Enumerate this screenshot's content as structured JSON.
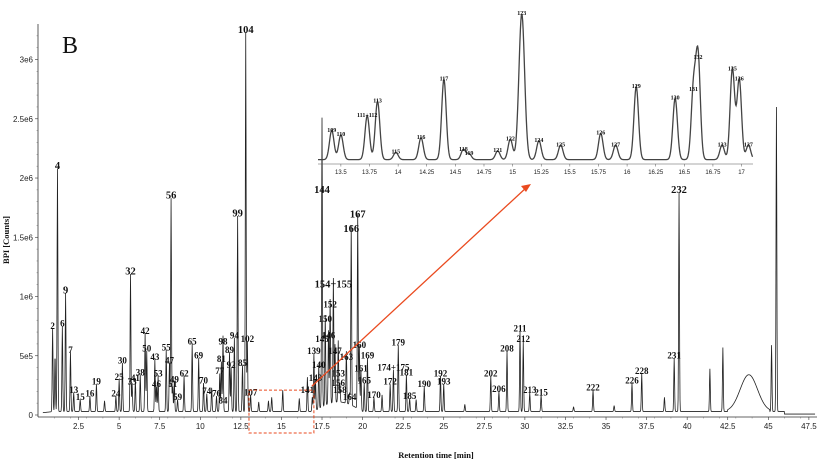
{
  "chart_data": {
    "type": "line",
    "panel_label": "B",
    "xlabel": "Retention time [min]",
    "ylabel": "BPI [Counts]",
    "xlim": [
      0,
      48
    ],
    "ylim": [
      0,
      3300000
    ],
    "x_ticks": [
      "2.5",
      "5",
      "7.5",
      "10",
      "12.5",
      "15",
      "17.5",
      "20",
      "22.5",
      "25",
      "27.5",
      "30",
      "32.5",
      "35",
      "37.5",
      "40",
      "42.5",
      "45",
      "47.5"
    ],
    "y_ticks": [
      "0",
      "5e5",
      "1e6",
      "1.5e6",
      "2e6",
      "2.5e6",
      "3e6"
    ],
    "peaks": [
      {
        "label": "2",
        "x": 0.9,
        "y": 700000
      },
      {
        "label": "4",
        "x": 1.2,
        "y": 2050000
      },
      {
        "label": "6",
        "x": 1.5,
        "y": 720000
      },
      {
        "label": "7",
        "x": 2.0,
        "y": 500000
      },
      {
        "label": "9",
        "x": 1.7,
        "y": 1000000
      },
      {
        "label": "13",
        "x": 2.2,
        "y": 160000
      },
      {
        "label": "15",
        "x": 2.6,
        "y": 100000
      },
      {
        "label": "16",
        "x": 3.2,
        "y": 130000
      },
      {
        "label": "19",
        "x": 3.6,
        "y": 230000
      },
      {
        "label": "24",
        "x": 4.8,
        "y": 130000
      },
      {
        "label": "25",
        "x": 5.0,
        "y": 270000
      },
      {
        "label": "30",
        "x": 5.2,
        "y": 410000
      },
      {
        "label": "32",
        "x": 5.7,
        "y": 1160000
      },
      {
        "label": "33",
        "x": 5.8,
        "y": 230000
      },
      {
        "label": "38",
        "x": 6.3,
        "y": 310000
      },
      {
        "label": "41",
        "x": 6.0,
        "y": 260000
      },
      {
        "label": "42",
        "x": 6.6,
        "y": 660000
      },
      {
        "label": "43",
        "x": 7.2,
        "y": 440000
      },
      {
        "label": "46",
        "x": 7.3,
        "y": 210000
      },
      {
        "label": "47",
        "x": 8.1,
        "y": 410000
      },
      {
        "label": "49",
        "x": 8.4,
        "y": 250000
      },
      {
        "label": "50",
        "x": 6.7,
        "y": 510000
      },
      {
        "label": "51",
        "x": 8.3,
        "y": 210000
      },
      {
        "label": "53",
        "x": 7.4,
        "y": 300000
      },
      {
        "label": "55",
        "x": 7.9,
        "y": 520000
      },
      {
        "label": "56",
        "x": 8.2,
        "y": 1800000
      },
      {
        "label": "59",
        "x": 8.6,
        "y": 100000
      },
      {
        "label": "62",
        "x": 9.0,
        "y": 300000
      },
      {
        "label": "65",
        "x": 9.5,
        "y": 570000
      },
      {
        "label": "69",
        "x": 9.9,
        "y": 450000
      },
      {
        "label": "70",
        "x": 10.2,
        "y": 240000
      },
      {
        "label": "74",
        "x": 10.4,
        "y": 150000
      },
      {
        "label": "76",
        "x": 11.0,
        "y": 130000
      },
      {
        "label": "77",
        "x": 11.2,
        "y": 320000
      },
      {
        "label": "81",
        "x": 11.3,
        "y": 420000
      },
      {
        "label": "84",
        "x": 11.4,
        "y": 70000
      },
      {
        "label": "85",
        "x": 12.6,
        "y": 390000
      },
      {
        "label": "89",
        "x": 11.8,
        "y": 500000
      },
      {
        "label": "92",
        "x": 11.9,
        "y": 370000
      },
      {
        "label": "94",
        "x": 12.1,
        "y": 620000
      },
      {
        "label": "98",
        "x": 11.4,
        "y": 570000
      },
      {
        "label": "99",
        "x": 12.3,
        "y": 1650000
      },
      {
        "label": "102",
        "x": 12.9,
        "y": 590000
      },
      {
        "label": "104",
        "x": 12.8,
        "y": 3200000
      },
      {
        "label": "107",
        "x": 13.1,
        "y": 140000
      },
      {
        "label": "139",
        "x": 17.0,
        "y": 490000
      },
      {
        "label": "140",
        "x": 17.3,
        "y": 370000
      },
      {
        "label": "141",
        "x": 16.6,
        "y": 160000
      },
      {
        "label": "143",
        "x": 17.1,
        "y": 260000
      },
      {
        "label": "144",
        "x": 17.5,
        "y": 1850000
      },
      {
        "label": "145",
        "x": 17.5,
        "y": 590000
      },
      {
        "label": "146",
        "x": 17.9,
        "y": 620000
      },
      {
        "label": "147",
        "x": 18.3,
        "y": 490000
      },
      {
        "label": "150",
        "x": 17.7,
        "y": 760000
      },
      {
        "label": "152",
        "x": 18.0,
        "y": 880000
      },
      {
        "label": "153",
        "x": 18.5,
        "y": 300000
      },
      {
        "label": "154+155",
        "x": 18.2,
        "y": 1050000
      },
      {
        "label": "156",
        "x": 18.5,
        "y": 220000
      },
      {
        "label": "158",
        "x": 18.6,
        "y": 160000
      },
      {
        "label": "160",
        "x": 19.8,
        "y": 540000
      },
      {
        "label": "161",
        "x": 19.9,
        "y": 340000
      },
      {
        "label": "163",
        "x": 19.0,
        "y": 440000
      },
      {
        "label": "164",
        "x": 19.2,
        "y": 100000
      },
      {
        "label": "165",
        "x": 20.1,
        "y": 240000
      },
      {
        "label": "166",
        "x": 19.3,
        "y": 1520000
      },
      {
        "label": "167",
        "x": 19.7,
        "y": 1640000
      },
      {
        "label": "169",
        "x": 20.3,
        "y": 450000
      },
      {
        "label": "170",
        "x": 20.7,
        "y": 120000
      },
      {
        "label": "172",
        "x": 21.7,
        "y": 230000
      },
      {
        "label": "174+175",
        "x": 21.9,
        "y": 350000
      },
      {
        "label": "179",
        "x": 22.2,
        "y": 560000
      },
      {
        "label": "181",
        "x": 22.7,
        "y": 310000
      },
      {
        "label": "185",
        "x": 22.9,
        "y": 110000
      },
      {
        "label": "190",
        "x": 23.8,
        "y": 210000
      },
      {
        "label": "192",
        "x": 24.8,
        "y": 300000
      },
      {
        "label": "193",
        "x": 25.0,
        "y": 230000
      },
      {
        "label": "202",
        "x": 27.9,
        "y": 300000
      },
      {
        "label": "206",
        "x": 28.4,
        "y": 170000
      },
      {
        "label": "208",
        "x": 28.9,
        "y": 510000
      },
      {
        "label": "211",
        "x": 29.7,
        "y": 680000
      },
      {
        "label": "212",
        "x": 29.9,
        "y": 590000
      },
      {
        "label": "213",
        "x": 30.3,
        "y": 160000
      },
      {
        "label": "215",
        "x": 31.0,
        "y": 140000
      },
      {
        "label": "222",
        "x": 34.2,
        "y": 180000
      },
      {
        "label": "226",
        "x": 36.6,
        "y": 240000
      },
      {
        "label": "228",
        "x": 37.2,
        "y": 320000
      },
      {
        "label": "231",
        "x": 39.2,
        "y": 450000
      },
      {
        "label": "232",
        "x": 39.5,
        "y": 1850000
      }
    ],
    "inset": {
      "xlim": [
        13.3,
        17.1
      ],
      "x_ticks": [
        "13.5",
        "13.75",
        "14",
        "14.25",
        "14.5",
        "14.75",
        "15",
        "15.25",
        "15.5",
        "15.75",
        "16",
        "16.25",
        "16.5",
        "16.75",
        "17"
      ],
      "zoom_range": [
        13.0,
        17.0
      ],
      "peaks": [
        {
          "label": "109",
          "x": 13.42,
          "y": 0.2
        },
        {
          "label": "110",
          "x": 13.5,
          "y": 0.17
        },
        {
          "label": "111+112",
          "x": 13.73,
          "y": 0.3
        },
        {
          "label": "113",
          "x": 13.82,
          "y": 0.4
        },
        {
          "label": "115",
          "x": 13.98,
          "y": 0.05
        },
        {
          "label": "116",
          "x": 14.2,
          "y": 0.15
        },
        {
          "label": "117",
          "x": 14.4,
          "y": 0.55
        },
        {
          "label": "118",
          "x": 14.57,
          "y": 0.07
        },
        {
          "label": "119",
          "x": 14.62,
          "y": 0.04
        },
        {
          "label": "121",
          "x": 14.87,
          "y": 0.06
        },
        {
          "label": "122",
          "x": 14.98,
          "y": 0.14
        },
        {
          "label": "123",
          "x": 15.08,
          "y": 1.0
        },
        {
          "label": "124",
          "x": 15.23,
          "y": 0.13
        },
        {
          "label": "125",
          "x": 15.42,
          "y": 0.1
        },
        {
          "label": "126",
          "x": 15.77,
          "y": 0.18
        },
        {
          "label": "127",
          "x": 15.9,
          "y": 0.1
        },
        {
          "label": "129",
          "x": 16.08,
          "y": 0.5
        },
        {
          "label": "130",
          "x": 16.42,
          "y": 0.42
        },
        {
          "label": "131",
          "x": 16.58,
          "y": 0.48
        },
        {
          "label": "132",
          "x": 16.62,
          "y": 0.7
        },
        {
          "label": "133",
          "x": 16.83,
          "y": 0.1
        },
        {
          "label": "135",
          "x": 16.92,
          "y": 0.62
        },
        {
          "label": "136",
          "x": 16.98,
          "y": 0.55
        },
        {
          "label": "137",
          "x": 17.06,
          "y": 0.1
        }
      ]
    }
  }
}
